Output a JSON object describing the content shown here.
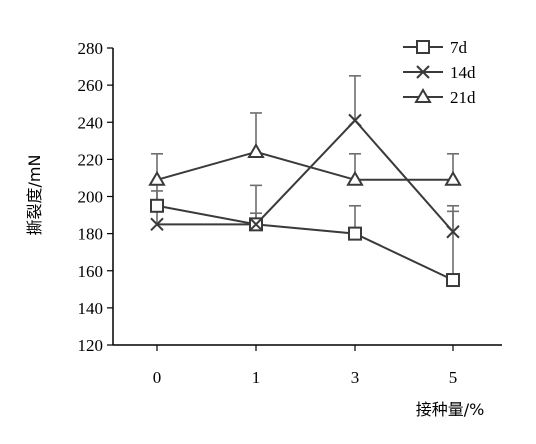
{
  "chart_data": {
    "type": "line",
    "categories": [
      "0",
      "1",
      "3",
      "5"
    ],
    "xlabel": "接种量/%",
    "ylabel": "撕裂度/mN",
    "ylim": [
      120,
      280
    ],
    "yticks": [
      120,
      140,
      160,
      180,
      200,
      220,
      240,
      260,
      280
    ],
    "grid": false,
    "legend_position": "top-right",
    "series": [
      {
        "name": "7d",
        "marker": "square",
        "values": [
          195,
          185,
          180,
          155
        ],
        "error": [
          8,
          21,
          15,
          37
        ]
      },
      {
        "name": "14d",
        "marker": "x",
        "values": [
          185,
          185,
          241,
          181
        ],
        "error": [
          22,
          6,
          24,
          14
        ]
      },
      {
        "name": "21d",
        "marker": "triangle",
        "values": [
          209,
          224,
          209,
          209
        ],
        "error": [
          14,
          21,
          14,
          14
        ]
      }
    ]
  }
}
